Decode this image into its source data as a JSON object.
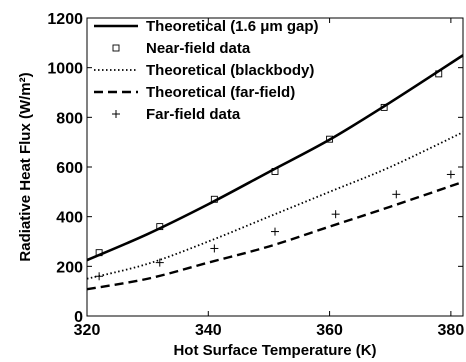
{
  "chart_data": {
    "type": "line",
    "xlabel": "Hot Surface Temperature (K)",
    "ylabel": "Radiative Heat Flux (W/m²)",
    "xlim": [
      320,
      382
    ],
    "ylim": [
      0,
      1200
    ],
    "xticks": [
      320,
      340,
      360,
      380
    ],
    "yticks": [
      0,
      200,
      400,
      600,
      800,
      1000,
      1200
    ],
    "grid": false,
    "legend_position": "top-left",
    "series": [
      {
        "name": "Theoretical (1.6 μm gap)",
        "style": "solid",
        "color": "#000000",
        "x": [
          320,
          330,
          340,
          350,
          360,
          370,
          382
        ],
        "y": [
          225,
          330,
          450,
          580,
          710,
          860,
          1050
        ]
      },
      {
        "name": "Near-field data",
        "style": "square-marker",
        "color": "#000000",
        "x": [
          322,
          332,
          341,
          351,
          360,
          369,
          378
        ],
        "y": [
          255,
          360,
          470,
          582,
          712,
          840,
          975
        ]
      },
      {
        "name": "Theoretical (blackbody)",
        "style": "dotted",
        "color": "#000000",
        "x": [
          320,
          330,
          340,
          350,
          360,
          370,
          382
        ],
        "y": [
          150,
          210,
          300,
          400,
          500,
          600,
          740
        ]
      },
      {
        "name": "Theoretical (far-field)",
        "style": "dashed",
        "color": "#000000",
        "x": [
          320,
          330,
          340,
          350,
          360,
          370,
          382
        ],
        "y": [
          108,
          150,
          215,
          280,
          360,
          440,
          540
        ]
      },
      {
        "name": "Far-field data",
        "style": "plus-marker",
        "color": "#000000",
        "x": [
          322,
          332,
          341,
          351,
          361,
          371,
          380
        ],
        "y": [
          160,
          215,
          272,
          340,
          410,
          490,
          570
        ]
      }
    ]
  }
}
